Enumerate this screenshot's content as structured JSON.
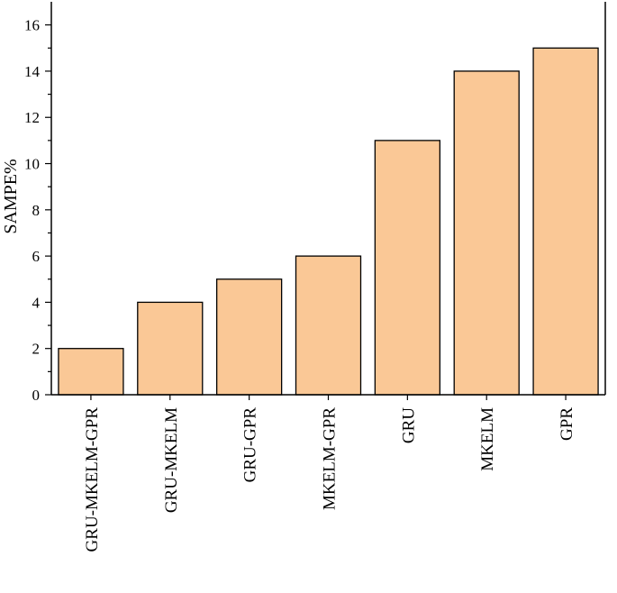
{
  "chart_data": {
    "type": "bar",
    "categories": [
      "GRU-MKELM-GPR",
      "GRU-MKELM",
      "GRU-GPR",
      "MKELM-GPR",
      "GRU",
      "MKELM",
      "GPR"
    ],
    "values": [
      2,
      4,
      5,
      6,
      11,
      14,
      15
    ],
    "ylabel": "SAMPE%",
    "xlabel": "",
    "title": "",
    "ylim": [
      0,
      17
    ],
    "yticks": [
      0,
      2,
      4,
      6,
      8,
      10,
      12,
      14,
      16
    ],
    "bar_color": "#fac896",
    "grid": false,
    "legend": "none"
  }
}
